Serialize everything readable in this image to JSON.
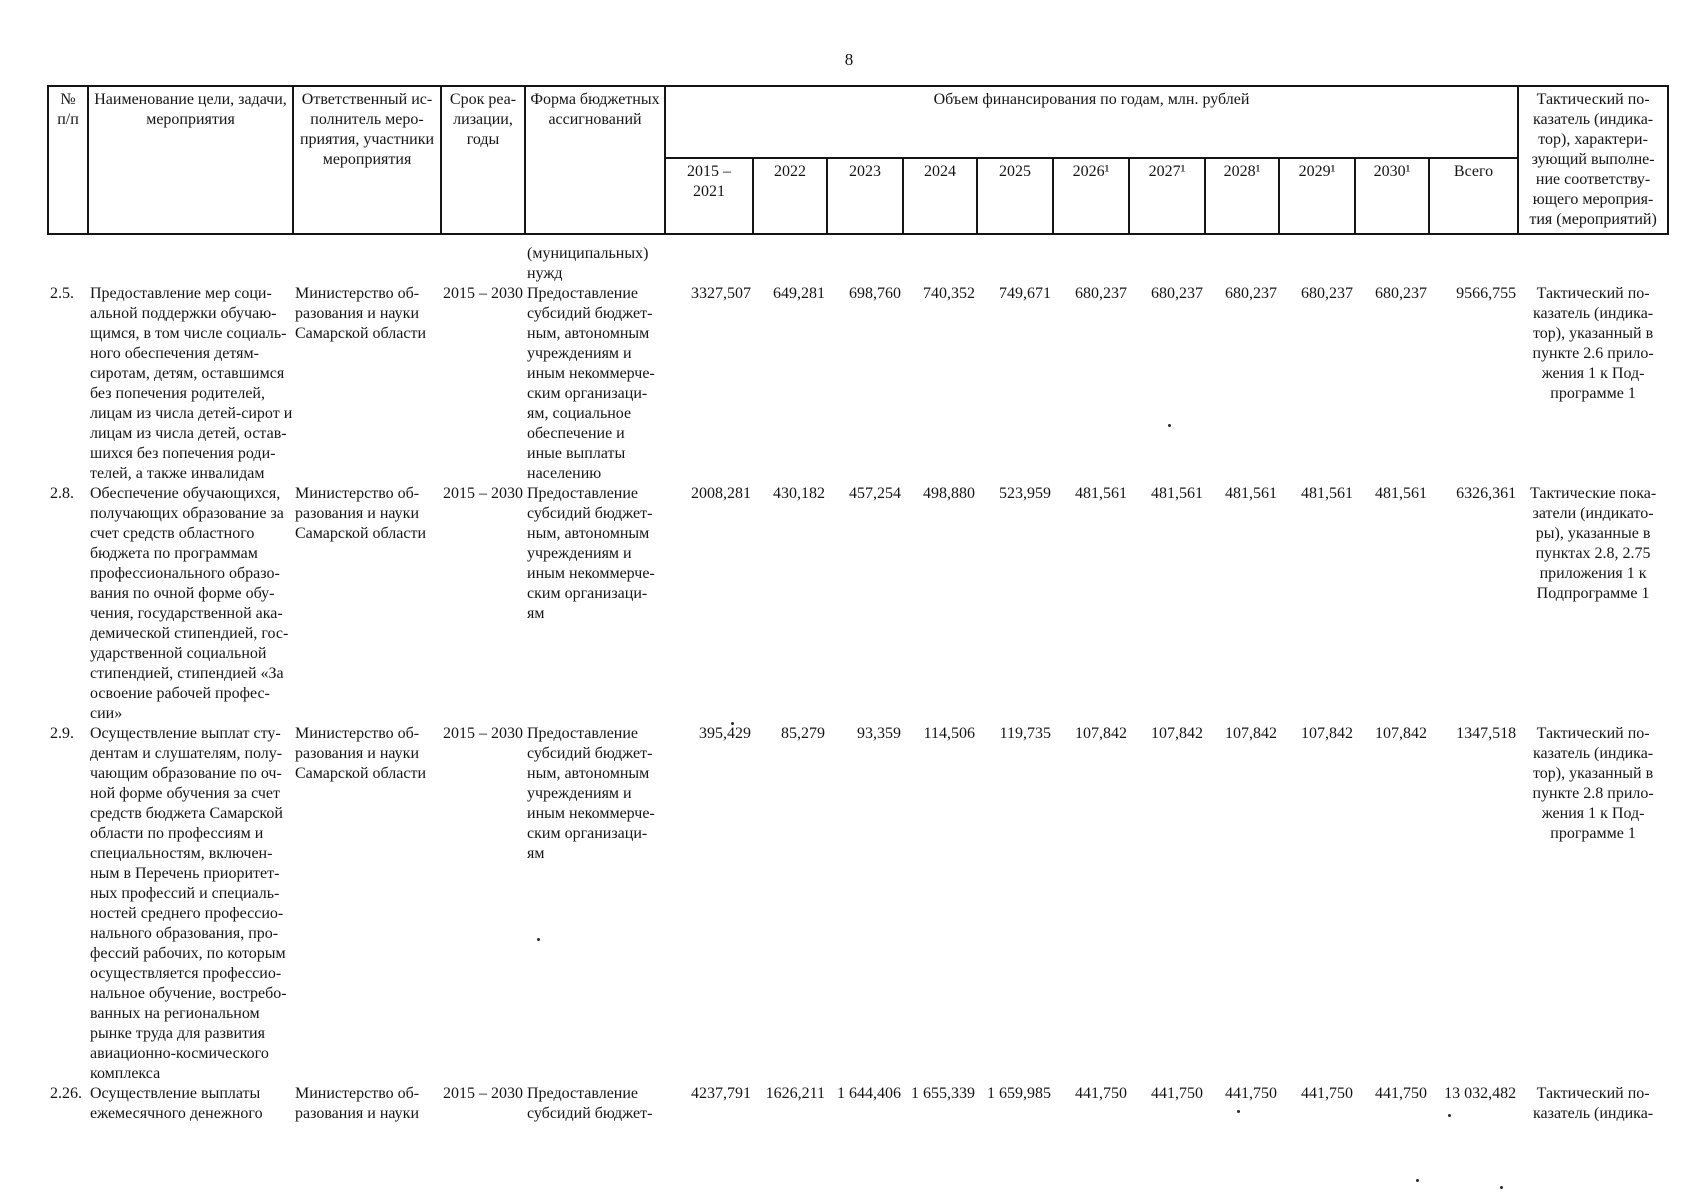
{
  "page": {
    "number": "8"
  },
  "table": {
    "header": {
      "col_num": "№\nп/п",
      "col_name": "Наименование цели, задачи,\nмероприятия",
      "col_executor": "Ответственный ис-\nполнитель меро-\nприятия, участники\nмероприятия",
      "col_term": "Срок реа-\nлизации,\nгоды",
      "col_form": "Форма бюджетных\nассигнований",
      "financing_title": "Объем финансирования по годам, млн. рублей",
      "years": [
        "2015 –\n2021",
        "2022",
        "2023",
        "2024",
        "2025",
        "2026¹",
        "2027¹",
        "2028¹",
        "2029¹",
        "2030¹",
        "Всего"
      ],
      "col_indicator": "Тактический по-\nказатель (индика-\nтор), характери-\nзующий выполне-\nние соответству-\nющего мероприя-\nтия (мероприятий)"
    },
    "rows": [
      {
        "num": "",
        "name": "",
        "executor": "",
        "term": "",
        "form": "(муниципальных)\nнужд",
        "values": [
          "",
          "",
          "",
          "",
          "",
          "",
          "",
          "",
          "",
          "",
          ""
        ],
        "indicator": ""
      },
      {
        "num": "2.5.",
        "name": "Предоставление мер соци-\nальной поддержки обучаю-\nщимся, в том числе социаль-\nного обеспечения детям-\nсиротам, детям, оставшимся\nбез попечения родителей,\nлицам из числа детей-сирот и\nлицам из числа детей, остав-\nшихся без попечения роди-\nтелей, а также инвалидам",
        "executor": "Министерство об-\nразования и науки\nСамарской области",
        "term": "2015 – 2030",
        "form": "Предоставление\nсубсидий бюджет-\nным, автономным\nучреждениям и\nиным некоммерче-\nским организаци-\nям, социальное\nобеспечение и\nиные выплаты\nнаселению",
        "values": [
          "3327,507",
          "649,281",
          "698,760",
          "740,352",
          "749,671",
          "680,237",
          "680,237",
          "680,237",
          "680,237",
          "680,237",
          "9566,755"
        ],
        "indicator": "Тактический по-\nказатель (индика-\nтор), указанный в\nпункте 2.6 прило-\nжения 1 к Под-\nпрограмме 1"
      },
      {
        "num": "2.8.",
        "name": "Обеспечение обучающихся,\nполучающих образование за\nсчет средств областного\nбюджета по программам\nпрофессионального образо-\nвания по очной форме обу-\nчения, государственной ака-\nдемической стипендией, гос-\nударственной социальной\nстипендией, стипендией «За\nосвоение рабочей профес-\nсии»",
        "executor": "Министерство об-\nразования и науки\nСамарской области",
        "term": "2015 – 2030",
        "form": "Предоставление\nсубсидий бюджет-\nным, автономным\nучреждениям и\nиным некоммерче-\nским организаци-\nям",
        "values": [
          "2008,281",
          "430,182",
          "457,254",
          "498,880",
          "523,959",
          "481,561",
          "481,561",
          "481,561",
          "481,561",
          "481,561",
          "6326,361"
        ],
        "indicator": "Тактические пока-\nзатели (индикато-\nры), указанные в\nпунктах 2.8, 2.75\nприложения 1 к\nПодпрограмме 1"
      },
      {
        "num": "2.9.",
        "name": "Осуществление выплат сту-\nдентам и слушателям, полу-\nчающим образование по оч-\nной форме обучения за счет\nсредств бюджета Самарской\nобласти по профессиям и\nспециальностям, включен-\nным в Перечень приоритет-\nных профессий и специаль-\nностей среднего профессио-\nнального образования, про-\nфессий рабочих, по которым\nосуществляется профессио-\nнальное обучение, востребо-\nванных на региональном\nрынке труда для развития\nавиационно-космического\nкомплекса",
        "executor": "Министерство об-\nразования и науки\nСамарской области",
        "term": "2015 – 2030",
        "form": "Предоставление\nсубсидий бюджет-\nным, автономным\nучреждениям и\nиным некоммерче-\nским организаци-\nям",
        "values": [
          "395,429",
          "85,279",
          "93,359",
          "114,506",
          "119,735",
          "107,842",
          "107,842",
          "107,842",
          "107,842",
          "107,842",
          "1347,518"
        ],
        "indicator": "Тактический по-\nказатель (индика-\nтор), указанный в\nпункте 2.8 прило-\nжения 1 к Под-\nпрограмме 1"
      },
      {
        "num": "2.26.",
        "name": "Осуществление выплаты\nежемесячного денежного",
        "executor": "Министерство об-\nразования и науки",
        "term": "2015 – 2030",
        "form": "Предоставление\nсубсидий бюджет-",
        "values": [
          "4237,791",
          "1626,211",
          "1 644,406",
          "1 655,339",
          "1 659,985",
          "441,750",
          "441,750",
          "441,750",
          "441,750",
          "441,750",
          "13 032,482"
        ],
        "indicator": "Тактический по-\nказатель (индика-"
      }
    ]
  }
}
